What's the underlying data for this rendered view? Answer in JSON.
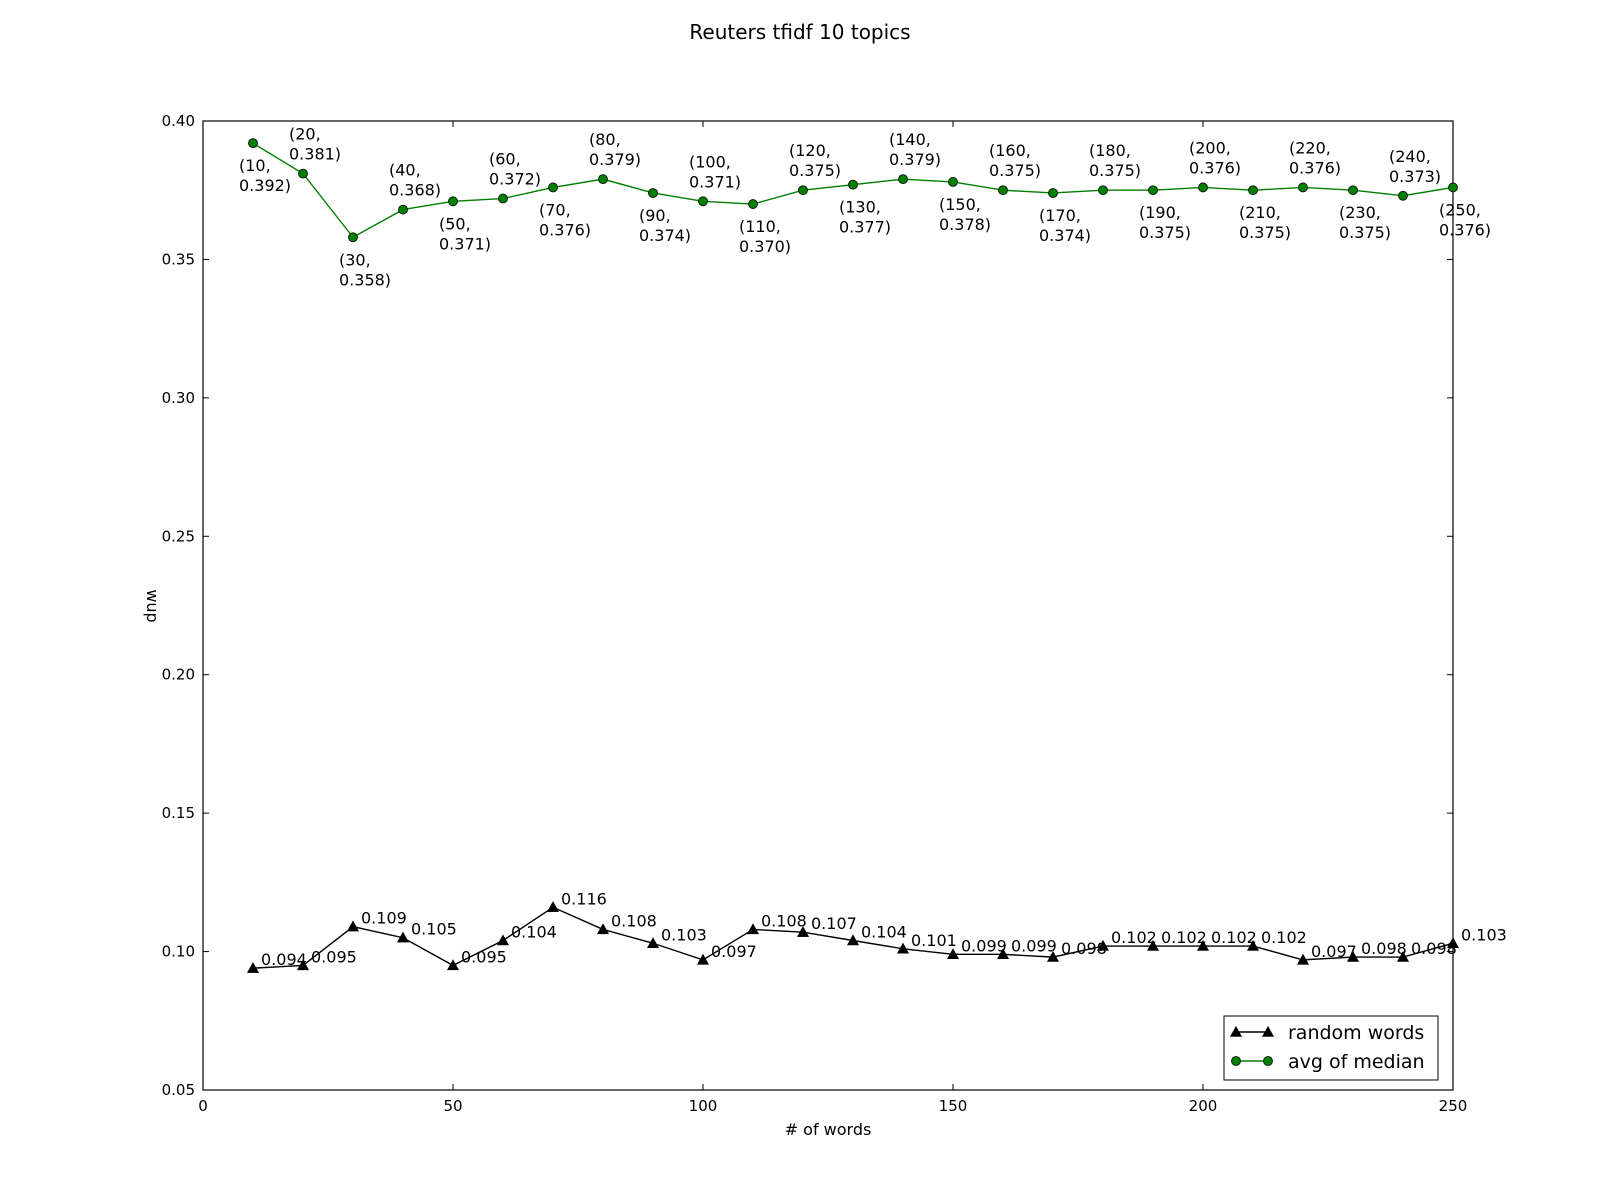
{
  "chart_data": {
    "type": "line",
    "title": "Reuters tfidf  10 topics",
    "xlabel": "# of words",
    "ylabel": "wup",
    "xlim": [
      0,
      250
    ],
    "ylim": [
      0.05,
      0.4
    ],
    "xticks": [
      0,
      50,
      100,
      150,
      200,
      250
    ],
    "xtick_labels": [
      "0",
      "50",
      "100",
      "150",
      "200",
      "250"
    ],
    "yticks": [
      0.05,
      0.1,
      0.15,
      0.2,
      0.25,
      0.3,
      0.35,
      0.4
    ],
    "ytick_labels": [
      "0.05",
      "0.10",
      "0.15",
      "0.20",
      "0.25",
      "0.30",
      "0.35",
      "0.40"
    ],
    "grid": false,
    "legend_position": "lower-right",
    "x": [
      10,
      20,
      30,
      40,
      50,
      60,
      70,
      80,
      90,
      100,
      110,
      120,
      130,
      140,
      150,
      160,
      170,
      180,
      190,
      200,
      210,
      220,
      230,
      240,
      250
    ],
    "series": [
      {
        "name": "random words",
        "color": "#000000",
        "marker": "triangle",
        "values": [
          0.094,
          0.095,
          0.109,
          0.105,
          0.095,
          0.104,
          0.116,
          0.108,
          0.103,
          0.097,
          0.108,
          0.107,
          0.104,
          0.101,
          0.099,
          0.099,
          0.098,
          0.102,
          0.102,
          0.102,
          0.102,
          0.097,
          0.098,
          0.098,
          0.103
        ],
        "labels": [
          "0.094",
          "0.095",
          "0.109",
          "0.105",
          "0.095",
          "0.104",
          "0.116",
          "0.108",
          "0.103",
          "0.097",
          "0.108",
          "0.107",
          "0.104",
          "0.101",
          "0.099",
          "0.099",
          "0.098",
          "0.102",
          "0.102",
          "0.102",
          "0.102",
          "0.097",
          "0.098",
          "0.098",
          "0.103"
        ]
      },
      {
        "name": "avg of median",
        "color": "#007f00",
        "marker": "circle",
        "values": [
          0.392,
          0.381,
          0.358,
          0.368,
          0.371,
          0.372,
          0.376,
          0.379,
          0.374,
          0.371,
          0.37,
          0.375,
          0.377,
          0.379,
          0.378,
          0.375,
          0.374,
          0.375,
          0.375,
          0.376,
          0.375,
          0.376,
          0.375,
          0.373,
          0.376
        ],
        "labels": [
          [
            "(10,",
            "0.392)"
          ],
          [
            "(20,",
            "0.381)"
          ],
          [
            "(30,",
            "0.358)"
          ],
          [
            "(40,",
            "0.368)"
          ],
          [
            "(50,",
            "0.371)"
          ],
          [
            "(60,",
            "0.372)"
          ],
          [
            "(70,",
            "0.376)"
          ],
          [
            "(80,",
            "0.379)"
          ],
          [
            "(90,",
            "0.374)"
          ],
          [
            "(100,",
            "0.371)"
          ],
          [
            "(110,",
            "0.370)"
          ],
          [
            "(120,",
            "0.375)"
          ],
          [
            "(130,",
            "0.377)"
          ],
          [
            "(140,",
            "0.379)"
          ],
          [
            "(150,",
            "0.378)"
          ],
          [
            "(160,",
            "0.375)"
          ],
          [
            "(170,",
            "0.374)"
          ],
          [
            "(180,",
            "0.375)"
          ],
          [
            "(190,",
            "0.375)"
          ],
          [
            "(200,",
            "0.376)"
          ],
          [
            "(210,",
            "0.375)"
          ],
          [
            "(220,",
            "0.376)"
          ],
          [
            "(230,",
            "0.375)"
          ],
          [
            "(240,",
            "0.373)"
          ],
          [
            "(250,",
            "0.376)"
          ]
        ],
        "label_side": [
          "below",
          "above",
          "below",
          "above",
          "below",
          "above",
          "below",
          "above",
          "below",
          "above",
          "below",
          "above",
          "below",
          "above",
          "below",
          "above",
          "below",
          "above",
          "below",
          "above",
          "below",
          "above",
          "below",
          "above",
          "below"
        ]
      }
    ]
  }
}
